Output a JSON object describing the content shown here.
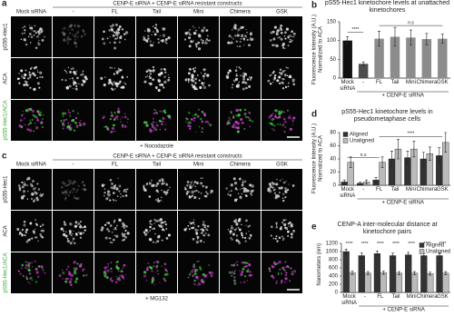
{
  "panel_a": {
    "letter": "a",
    "header": "CENP-E siRNA + CENP-E siRNA resistant constructs",
    "columns": [
      "Mock siRNA",
      "-",
      "FL",
      "Tail",
      "Mini",
      "Chimera",
      "GSK"
    ],
    "rows": [
      "pS55-Hec1",
      "ACA",
      "pS55-Hec1/ACA"
    ],
    "footer": "+ Nocodazole"
  },
  "panel_c": {
    "letter": "c",
    "header": "CENP-E siRNA + CENP-E siRNA resistant constructs",
    "columns": [
      "Mock siRNA",
      "-",
      "FL",
      "Tail",
      "Mini",
      "Chimera",
      "GSK"
    ],
    "rows": [
      "pS55-Hec1",
      "ACA",
      "pS55-Hec1/ACA"
    ],
    "footer": "+ MG132"
  },
  "chart_data": [
    {
      "type": "bar",
      "letter": "b",
      "title": "pS55-Hec1 kinetochore levels at unattached kinetochores",
      "ylabel": "Fluorescence Intensity (A.U.) Normalized to ACA",
      "categories": [
        "Mock siRNA",
        "-",
        "FL",
        "Tail",
        "Mini",
        "Chimera",
        "GSK"
      ],
      "group_label": "+ CENP-E siRNA",
      "values": [
        100,
        38,
        105,
        110,
        108,
        104,
        105
      ],
      "errors": [
        10,
        5,
        20,
        25,
        20,
        15,
        12
      ],
      "colors": [
        "#111111",
        "#4d4d4d",
        "#8c8c8c",
        "#8c8c8c",
        "#8c8c8c",
        "#8c8c8c",
        "#8c8c8c"
      ],
      "ylim": [
        0,
        150
      ],
      "yticks": [
        0,
        50,
        100,
        150
      ],
      "annotations": [
        "****",
        "n.s"
      ]
    },
    {
      "type": "grouped-bar",
      "letter": "d",
      "title": "pS55-Hec1 kinetochore levels in pseudometaphase cells",
      "ylabel": "Fluorescence Intensity (A.U.) Normalized to ACA",
      "categories": [
        "Mock siRNA",
        "-",
        "FL",
        "Tail",
        "Mini",
        "Chimera",
        "GSK"
      ],
      "group_label": "+ CENP-E siRNA",
      "series": [
        {
          "name": "Aligned",
          "color": "#333333",
          "values": [
            5,
            3,
            8,
            40,
            42,
            40,
            45
          ],
          "errors": [
            3,
            2,
            4,
            12,
            10,
            10,
            12
          ]
        },
        {
          "name": "Unaligned",
          "color": "#bbbbbb",
          "values": [
            35,
            5,
            35,
            55,
            55,
            48,
            65
          ],
          "errors": [
            8,
            3,
            8,
            15,
            12,
            10,
            15
          ]
        }
      ],
      "ylim": [
        0,
        80
      ],
      "yticks": [
        0,
        20,
        40,
        60,
        80
      ],
      "legend": "top-left",
      "annotations": [
        "n.s",
        "****"
      ]
    },
    {
      "type": "grouped-bar",
      "letter": "e",
      "title": "CENP-A inter-molecular distance at kinetochore pairs",
      "ylabel": "Nanometers (nm)",
      "categories": [
        "Mock siRNA",
        "-",
        "FL",
        "Tail",
        "Mini",
        "Chimera",
        "GSK"
      ],
      "group_label": "+ CENP-E siRNA",
      "series": [
        {
          "name": "Aligned",
          "color": "#333333",
          "values": [
            1000,
            900,
            950,
            900,
            920,
            900,
            900
          ],
          "errors": [
            60,
            60,
            60,
            60,
            60,
            60,
            60
          ]
        },
        {
          "name": "Unaligned",
          "color": "#bbbbbb",
          "values": [
            480,
            470,
            480,
            470,
            470,
            460,
            470
          ],
          "errors": [
            40,
            40,
            40,
            40,
            40,
            40,
            40
          ]
        }
      ],
      "ylim": [
        0,
        1200
      ],
      "yticks": [
        0,
        200,
        400,
        600,
        800,
        1000,
        1200
      ],
      "legend": "top-right",
      "annotations": [
        "****",
        "****",
        "****",
        "****",
        "****",
        "****",
        "****"
      ]
    }
  ]
}
